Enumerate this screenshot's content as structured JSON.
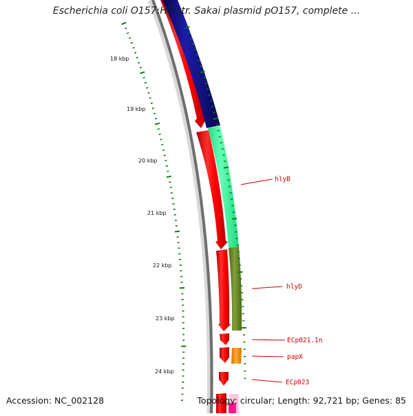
{
  "title": "Escherichia coli O157:H7 str. Sakai plasmid pO157, complete ...",
  "accession_text": "Accession: NC_002128",
  "summary_text": "Topology: circular; Length: 92,721 bp; Genes: 85",
  "colors": {
    "backbone_dark": "#6e6e6e",
    "backbone_light": "#d8d8d8",
    "red": "#ff0000",
    "navy": "#0a0a85",
    "spring": "#33ff99",
    "olive": "#6b8e23",
    "orange": "#ff8c00",
    "tick": "#0f7a0f",
    "label_line": "#cc0000"
  },
  "kbp_labels": [
    "18 kbp",
    "19 kbp",
    "20 kbp",
    "21 kbp",
    "22 kbp",
    "23 kbp",
    "24 kbp"
  ],
  "gene_labels": [
    "hlyB",
    "hlyD",
    "ECp021.1n",
    "papX",
    "ECp023"
  ]
}
